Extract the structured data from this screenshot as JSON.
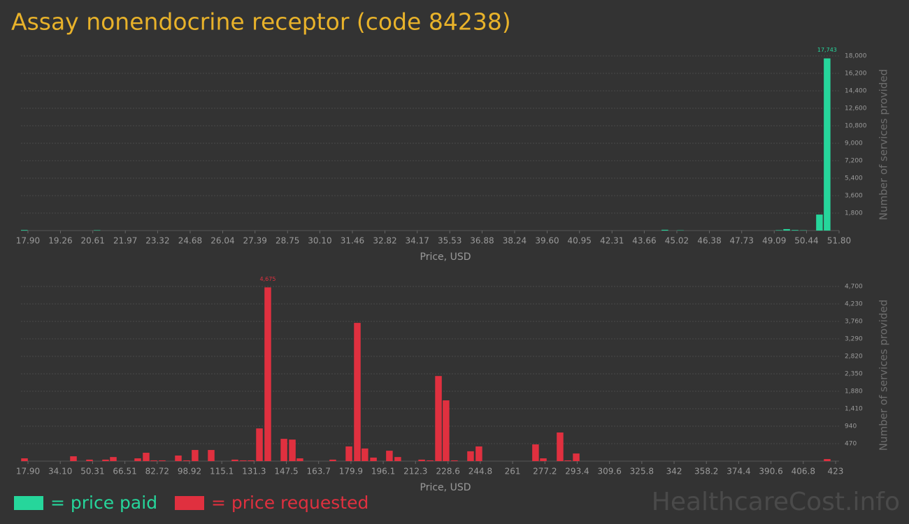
{
  "title": "Assay nonendocrine receptor (code 84238)",
  "watermark": "HealthcareCost.info",
  "chart_data": [
    {
      "type": "bar",
      "x_label": "Price, USD",
      "y_label": "Number of services provided",
      "grid": true,
      "xlim": [
        17.61,
        51.8
      ],
      "xticks": [
        {
          "value": 17.9,
          "label": "17.90"
        },
        19.26,
        20.61,
        21.97,
        23.32,
        24.68,
        26.04,
        27.39,
        28.75,
        {
          "value": 30.1,
          "label": "30.10"
        },
        31.46,
        32.82,
        34.17,
        35.53,
        36.88,
        38.24,
        {
          "value": 39.6,
          "label": "39.60"
        },
        40.95,
        42.31,
        43.66,
        45.02,
        46.38,
        47.73,
        49.09,
        50.44,
        {
          "value": 51.8,
          "label": "51.80"
        }
      ],
      "ylim": [
        0,
        18000
      ],
      "yticks": [
        {
          "value": 1800,
          "label": "1,800"
        },
        {
          "value": 3600,
          "label": "3,600"
        },
        {
          "value": 5400,
          "label": "5,400"
        },
        {
          "value": 7200,
          "label": "7,200"
        },
        {
          "value": 9000,
          "label": "9,000"
        },
        {
          "value": 10800,
          "label": "10,800"
        },
        {
          "value": 12600,
          "label": "12,600"
        },
        {
          "value": 14400,
          "label": "14,400"
        },
        {
          "value": 16200,
          "label": "16,200"
        },
        {
          "value": 18000,
          "label": "18,000"
        }
      ],
      "x": [
        17.75,
        20.79,
        44.52,
        45.17,
        49.29,
        49.61,
        49.96,
        50.31,
        50.98,
        51.3
      ],
      "series": [
        {
          "name": "= price paid",
          "color": "#26d69b",
          "values": [
            60,
            40,
            80,
            30,
            40,
            150,
            60,
            30,
            1650,
            17743
          ],
          "value_labels": [
            null,
            null,
            null,
            null,
            null,
            null,
            null,
            null,
            null,
            "17,743"
          ]
        }
      ]
    },
    {
      "type": "bar",
      "x_label": "Price, USD",
      "y_label": "Number of services provided",
      "grid": true,
      "xlim": [
        14.39,
        424.76
      ],
      "xticks": [
        {
          "value": 17.9,
          "label": "17.90"
        },
        {
          "value": 34.1,
          "label": "34.10"
        },
        50.31,
        66.51,
        82.72,
        98.92,
        115.1,
        131.3,
        147.5,
        163.7,
        179.9,
        196.1,
        212.3,
        228.6,
        244.8,
        261,
        277.2,
        293.4,
        309.6,
        325.8,
        342,
        358.2,
        374.4,
        390.6,
        406.8,
        423
      ],
      "ylim": [
        0,
        4700
      ],
      "yticks": [
        470,
        940,
        {
          "value": 1410,
          "label": "1,410"
        },
        {
          "value": 1880,
          "label": "1,880"
        },
        {
          "value": 2350,
          "label": "2,350"
        },
        {
          "value": 2820,
          "label": "2,820"
        },
        {
          "value": 3290,
          "label": "3,290"
        },
        {
          "value": 3760,
          "label": "3,760"
        },
        {
          "value": 4230,
          "label": "4,230"
        },
        {
          "value": 4700,
          "label": "4,700"
        }
      ],
      "x": [
        16.15,
        40.7,
        48.76,
        56.83,
        60.69,
        72.97,
        77.17,
        81.03,
        85.24,
        93.31,
        97.5,
        101.7,
        109.8,
        121.7,
        125.9,
        129.8,
        134.0,
        138.2,
        146.3,
        150.5,
        154.3,
        170.8,
        178.9,
        183.1,
        186.9,
        191.2,
        199.2,
        203.4,
        215.4,
        219.6,
        223.8,
        227.6,
        231.8,
        239.9,
        244.1,
        272.5,
        276.4,
        284.8,
        288.7,
        292.9,
        418.8
      ],
      "series": [
        {
          "name": "= price requested",
          "color": "#e0303f",
          "values": [
            75,
            130,
            40,
            40,
            110,
            75,
            225,
            20,
            20,
            150,
            20,
            300,
            300,
            40,
            20,
            20,
            880,
            4675,
            600,
            580,
            75,
            40,
            395,
            3720,
            340,
            95,
            280,
            110,
            40,
            20,
            2290,
            1635,
            20,
            265,
            395,
            450,
            75,
            770,
            20,
            205,
            55
          ],
          "value_labels": [
            null,
            null,
            null,
            null,
            null,
            null,
            null,
            null,
            null,
            null,
            null,
            null,
            null,
            null,
            null,
            null,
            null,
            "4,675",
            null,
            null,
            null,
            null,
            null,
            null,
            null,
            null,
            null,
            null,
            null,
            null,
            null,
            null,
            null,
            null,
            null,
            null,
            null,
            null,
            null,
            null,
            null
          ]
        }
      ]
    }
  ]
}
